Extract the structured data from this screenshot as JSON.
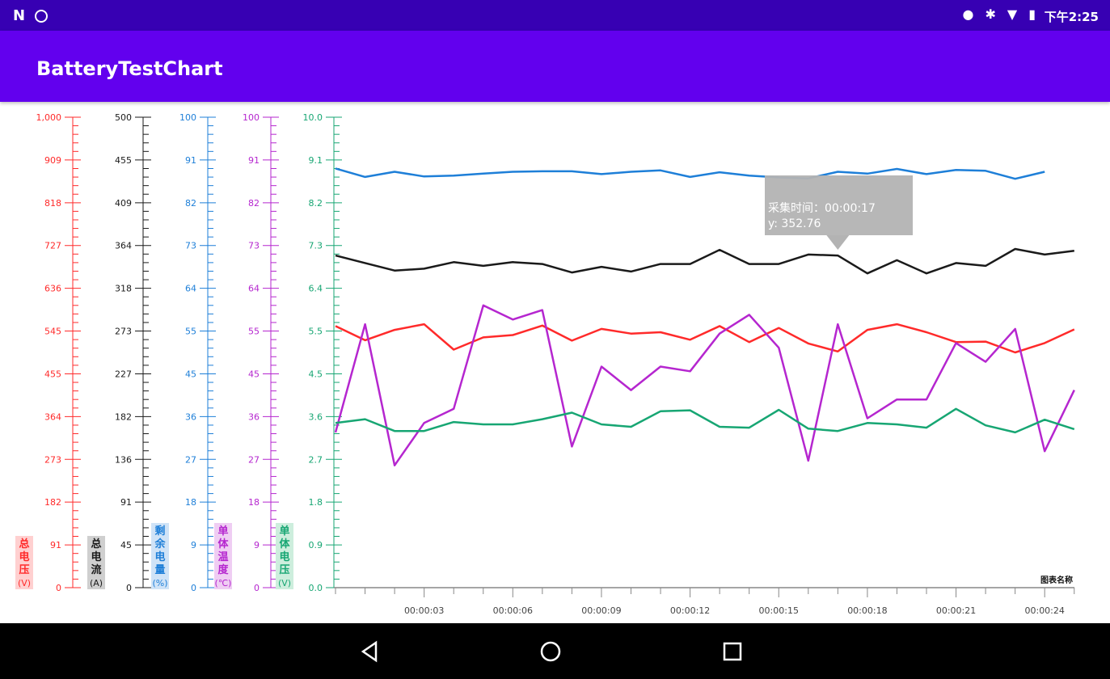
{
  "status_bar": {
    "time": "下午2:25",
    "icons_left": [
      "n-logo-icon",
      "shield-icon"
    ],
    "icons_right": [
      "location-icon",
      "bluetooth-icon",
      "wifi-icon",
      "battery-charging-icon"
    ]
  },
  "app_bar": {
    "title": "BatteryTestChart"
  },
  "colors": {
    "status_bar": "#3700b3",
    "app_bar": "#6200ee",
    "total_voltage": "#ff2a2a",
    "total_current": "#1a1a1a",
    "remaining_capacity": "#1e7fd8",
    "cell_temperature": "#b526cf",
    "cell_voltage": "#17a673"
  },
  "chart_data": {
    "type": "line",
    "chart_name_label": "图表名称",
    "x_labels": [
      "00:00:03",
      "00:00:06",
      "00:00:09",
      "00:00:12",
      "00:00:15",
      "00:00:18",
      "00:00:21",
      "00:00:24"
    ],
    "x_range": [
      0,
      25
    ],
    "axes": [
      {
        "id": "total_voltage",
        "color": "#ff2a2a",
        "title": "总电压",
        "unit": "(V)",
        "ticks": [
          "0",
          "91",
          "182",
          "273",
          "364",
          "455",
          "545",
          "636",
          "727",
          "818",
          "909",
          "1,000"
        ],
        "range": [
          0,
          1000
        ]
      },
      {
        "id": "total_current",
        "color": "#1a1a1a",
        "title": "总电流",
        "unit": "(A)",
        "ticks": [
          "0",
          "45",
          "91",
          "136",
          "182",
          "227",
          "273",
          "318",
          "364",
          "409",
          "455",
          "500"
        ],
        "range": [
          0,
          500
        ]
      },
      {
        "id": "remaining_capacity",
        "color": "#1e7fd8",
        "title": "剩余电量",
        "unit": "(%)",
        "ticks": [
          "0",
          "9",
          "18",
          "27",
          "36",
          "45",
          "55",
          "64",
          "73",
          "82",
          "91",
          "100"
        ],
        "range": [
          0,
          100
        ]
      },
      {
        "id": "cell_temperature",
        "color": "#b526cf",
        "title": "单体温度",
        "unit": "(℃)",
        "ticks": [
          "0",
          "9",
          "18",
          "27",
          "36",
          "45",
          "55",
          "64",
          "73",
          "82",
          "91",
          "100"
        ],
        "range": [
          0,
          100
        ]
      },
      {
        "id": "cell_voltage",
        "color": "#17a673",
        "title": "单体电压",
        "unit": "(V)",
        "ticks": [
          "0.0",
          "0.9",
          "1.8",
          "2.7",
          "3.6",
          "4.5",
          "5.5",
          "6.4",
          "7.3",
          "8.2",
          "9.1",
          "10.0"
        ],
        "range": [
          0,
          10
        ]
      }
    ],
    "series": [
      {
        "axis": "remaining_capacity",
        "color": "#1e7fd8",
        "values": [
          89.1,
          87.3,
          88.4,
          87.4,
          87.6,
          88.0,
          88.4,
          88.5,
          88.5,
          87.9,
          88.4,
          88.7,
          87.3,
          88.3,
          87.6,
          87.2,
          87.0,
          88.4,
          88.0,
          89.0,
          87.9,
          88.8,
          88.6,
          86.9,
          88.4
        ]
      },
      {
        "axis": "total_current",
        "color": "#1a1a1a",
        "values": [
          353,
          345,
          337,
          339,
          346,
          342,
          346,
          344,
          335,
          341,
          336,
          344,
          344,
          359,
          344,
          344,
          354,
          353,
          334,
          348,
          334,
          345,
          342,
          360,
          354,
          358
        ]
      },
      {
        "axis": "total_voltage",
        "color": "#ff2a2a",
        "values": [
          556,
          526,
          548,
          560,
          506,
          532,
          537,
          557,
          525,
          550,
          540,
          543,
          527,
          556,
          522,
          552,
          519,
          502,
          548,
          560,
          543,
          522,
          523,
          500,
          520,
          549
        ]
      },
      {
        "axis": "cell_temperature",
        "color": "#b526cf",
        "values": [
          33,
          56,
          26,
          35,
          38,
          60,
          57,
          59,
          30,
          47,
          42,
          47,
          46,
          54,
          58,
          51,
          27,
          56,
          36,
          40,
          40,
          52,
          48,
          55,
          29,
          42
        ]
      },
      {
        "axis": "cell_voltage",
        "color": "#17a673",
        "values": [
          3.5,
          3.58,
          3.33,
          3.33,
          3.52,
          3.47,
          3.47,
          3.58,
          3.72,
          3.47,
          3.42,
          3.75,
          3.77,
          3.42,
          3.4,
          3.78,
          3.38,
          3.33,
          3.5,
          3.47,
          3.4,
          3.8,
          3.45,
          3.3,
          3.57,
          3.37
        ]
      }
    ],
    "tooltip": {
      "line1": "采集时间：00:00:17",
      "line2": "y: 352.76",
      "x": 17,
      "series": "total_current"
    }
  }
}
